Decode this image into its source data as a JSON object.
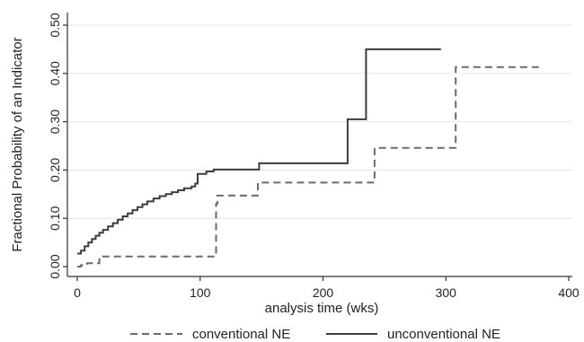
{
  "chart_data": {
    "type": "line",
    "title": "",
    "xlabel": "analysis time (wks)",
    "ylabel": "Fractional Probability of an Indicator",
    "xlim": [
      0,
      400
    ],
    "ylim": [
      0,
      0.5
    ],
    "x_ticks": [
      0,
      100,
      200,
      300,
      400
    ],
    "x_tick_labels": [
      "0",
      "100",
      "200",
      "300",
      "400"
    ],
    "y_ticks": [
      0,
      0.1,
      0.2,
      0.3,
      0.4,
      0.5
    ],
    "y_tick_labels": [
      "0.00",
      "0.10",
      "0.20",
      "0.30",
      "0.40",
      "0.50"
    ],
    "grid": true,
    "legend_position": "bottom",
    "series": [
      {
        "name": "conventional NE",
        "style": "dashed",
        "color": "#6b6b6b",
        "step": true,
        "points": [
          [
            0,
            0.0
          ],
          [
            3,
            0.003
          ],
          [
            8,
            0.007
          ],
          [
            18,
            0.021
          ],
          [
            112,
            0.021
          ],
          [
            113,
            0.13
          ],
          [
            114,
            0.147
          ],
          [
            145,
            0.147
          ],
          [
            147,
            0.174
          ],
          [
            240,
            0.174
          ],
          [
            242,
            0.246
          ],
          [
            307,
            0.246
          ],
          [
            308,
            0.413
          ],
          [
            377,
            0.413
          ]
        ]
      },
      {
        "name": "unconventional NE",
        "style": "solid",
        "color": "#3d3d3d",
        "step": true,
        "points": [
          [
            0,
            0.027
          ],
          [
            3,
            0.033
          ],
          [
            6,
            0.042
          ],
          [
            9,
            0.05
          ],
          [
            12,
            0.057
          ],
          [
            15,
            0.064
          ],
          [
            18,
            0.07
          ],
          [
            21,
            0.076
          ],
          [
            25,
            0.083
          ],
          [
            29,
            0.09
          ],
          [
            33,
            0.097
          ],
          [
            37,
            0.104
          ],
          [
            41,
            0.11
          ],
          [
            45,
            0.117
          ],
          [
            49,
            0.123
          ],
          [
            53,
            0.129
          ],
          [
            57,
            0.135
          ],
          [
            62,
            0.141
          ],
          [
            67,
            0.146
          ],
          [
            72,
            0.15
          ],
          [
            77,
            0.154
          ],
          [
            82,
            0.158
          ],
          [
            87,
            0.162
          ],
          [
            93,
            0.166
          ],
          [
            96,
            0.172
          ],
          [
            98,
            0.192
          ],
          [
            105,
            0.197
          ],
          [
            111,
            0.201
          ],
          [
            148,
            0.214
          ],
          [
            220,
            0.305
          ],
          [
            235,
            0.45
          ],
          [
            296,
            0.45
          ]
        ]
      }
    ]
  },
  "colors": {
    "axis": "#333333",
    "grid": "#e6e6e6",
    "background": "#ffffff"
  }
}
